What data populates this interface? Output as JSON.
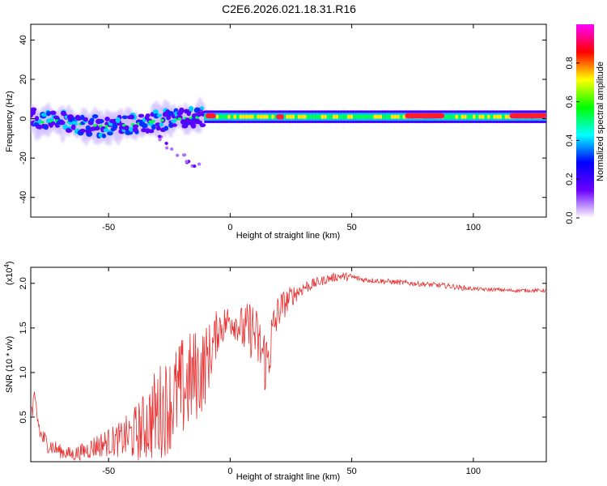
{
  "figure_title": "C2E6.2026.021.18.31.R16",
  "chart_data": [
    {
      "type": "heatmap",
      "title": "",
      "xlabel": "Height of straight line (km)",
      "ylabel": "Frequency (Hz)",
      "xlim": [
        -82,
        130
      ],
      "ylim": [
        -50,
        48
      ],
      "xticks": [
        -50,
        0,
        50,
        100
      ],
      "yticks": [
        -40,
        -20,
        0,
        20,
        40
      ],
      "xtick_labels": [
        "-50",
        "0",
        "50",
        "100"
      ],
      "ytick_labels": [
        "-40",
        "-20",
        "0",
        "20",
        "40"
      ],
      "ridge": [
        {
          "x": -80,
          "f": -2
        },
        {
          "x": -70,
          "f": -1
        },
        {
          "x": -60,
          "f": -3
        },
        {
          "x": -50,
          "f": -4
        },
        {
          "x": -40,
          "f": -3
        },
        {
          "x": -30,
          "f": -1
        },
        {
          "x": -20,
          "f": 0
        },
        {
          "x": -10,
          "f": 1
        },
        {
          "x": 0,
          "f": 1
        },
        {
          "x": 20,
          "f": 1
        },
        {
          "x": 50,
          "f": 1
        },
        {
          "x": 80,
          "f": 1
        },
        {
          "x": 100,
          "f": 1
        },
        {
          "x": 130,
          "f": 1
        }
      ],
      "hot_segments": [
        {
          "x0": -10,
          "x1": -6,
          "f": 1.5
        },
        {
          "x0": 19,
          "x1": 22,
          "f": 1
        },
        {
          "x0": 72,
          "x1": 88,
          "f": 1.5
        },
        {
          "x0": 115,
          "x1": 130,
          "f": 1.5
        }
      ],
      "branch": [
        {
          "x": -30,
          "f": -10
        },
        {
          "x": -25,
          "f": -14
        },
        {
          "x": -20,
          "f": -18
        },
        {
          "x": -17,
          "f": -21
        },
        {
          "x": -14,
          "f": -24
        }
      ],
      "colorbar": {
        "label": "Normalized spectral amplitude",
        "range": [
          0,
          1
        ],
        "ticks": [
          0.0,
          0.2,
          0.4,
          0.6,
          0.8
        ],
        "tick_labels": [
          "0.0",
          "0.2",
          "0.4",
          "0.6",
          "0.8"
        ],
        "colors": [
          "#ffffff",
          "#6a00ff",
          "#0000ff",
          "#00ffff",
          "#00ff00",
          "#ffff00",
          "#ff0000",
          "#ff00ff"
        ]
      }
    },
    {
      "type": "line",
      "title": "",
      "xlabel": "Height of straight line (km)",
      "ylabel": "SNR (10 * v/v)",
      "scale_note": "(x10",
      "scale_exponent": "4",
      "scale_close": ")",
      "xlim": [
        -82,
        130
      ],
      "ylim": [
        0,
        2.18
      ],
      "xticks": [
        -50,
        0,
        50,
        100
      ],
      "yticks": [
        0.5,
        1.0,
        1.5,
        2.0
      ],
      "xtick_labels": [
        "-50",
        "0",
        "50",
        "100"
      ],
      "ytick_labels": [
        "0.5",
        "1.0",
        "1.5",
        "2.0"
      ],
      "series": [
        {
          "name": "SNR",
          "color": "#e83030",
          "x": [
            -82,
            -80,
            -78,
            -75,
            -72,
            -70,
            -65,
            -60,
            -55,
            -50,
            -45,
            -40,
            -35,
            -30,
            -25,
            -20,
            -15,
            -12,
            -10,
            -7,
            -5,
            -2,
            0,
            3,
            6,
            9,
            12,
            15,
            18,
            20,
            25,
            30,
            35,
            40,
            45,
            50,
            55,
            60,
            65,
            70,
            75,
            80,
            85,
            90,
            95,
            100,
            105,
            110,
            115,
            120,
            125,
            130
          ],
          "values": [
            0.55,
            0.6,
            0.3,
            0.2,
            0.15,
            0.12,
            0.08,
            0.12,
            0.18,
            0.22,
            0.25,
            0.3,
            0.4,
            0.55,
            0.65,
            0.8,
            0.95,
            1.0,
            1.1,
            1.3,
            1.5,
            1.55,
            1.6,
            1.55,
            1.45,
            1.5,
            1.3,
            1.1,
            1.5,
            1.7,
            1.85,
            1.95,
            2.0,
            2.05,
            2.08,
            2.07,
            2.04,
            2.03,
            2.02,
            2.01,
            2.0,
            1.99,
            1.98,
            1.97,
            1.95,
            1.94,
            1.93,
            1.93,
            1.92,
            1.92,
            1.92,
            1.92
          ],
          "noise": [
            0.2,
            0.2,
            0.12,
            0.1,
            0.1,
            0.08,
            0.08,
            0.1,
            0.14,
            0.16,
            0.2,
            0.3,
            0.4,
            0.55,
            0.55,
            0.6,
            0.55,
            0.5,
            0.45,
            0.3,
            0.25,
            0.2,
            0.2,
            0.2,
            0.3,
            0.35,
            0.35,
            0.4,
            0.3,
            0.2,
            0.12,
            0.08,
            0.06,
            0.05,
            0.05,
            0.04,
            0.03,
            0.03,
            0.03,
            0.03,
            0.03,
            0.03,
            0.03,
            0.03,
            0.03,
            0.02,
            0.02,
            0.02,
            0.02,
            0.02,
            0.02,
            0.02
          ]
        }
      ]
    }
  ]
}
